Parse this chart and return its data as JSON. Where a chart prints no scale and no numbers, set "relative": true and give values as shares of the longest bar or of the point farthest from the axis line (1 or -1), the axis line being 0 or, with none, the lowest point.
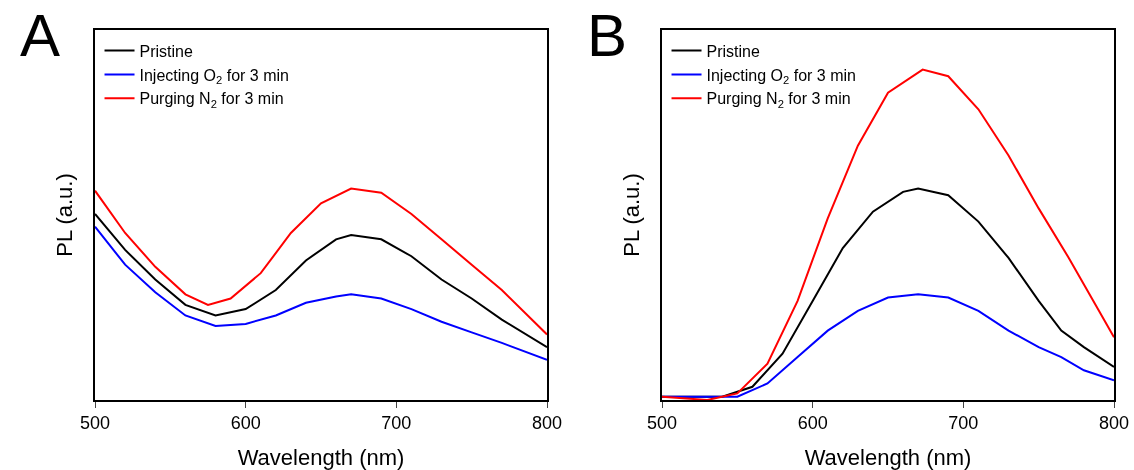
{
  "chart_data": [
    {
      "type": "line",
      "relative": true,
      "xlabel": "Wavelength (nm)",
      "ylabel": "PL (a.u.)",
      "annotations": [
        "A"
      ],
      "xlim": [
        500,
        800
      ],
      "xticks": [
        500,
        600,
        700,
        800
      ],
      "grid": false,
      "legend": "top left",
      "marker": "none",
      "line_style": "solid",
      "x": [
        500,
        520,
        540,
        560,
        575,
        590,
        610,
        630,
        650,
        670,
        690,
        710,
        730,
        750,
        770,
        800
      ],
      "series": [
        {
          "name": "Pristine",
          "color": "#000000",
          "x": [
            500,
            520,
            540,
            560,
            580,
            600,
            620,
            640,
            660,
            670,
            690,
            710,
            730,
            750,
            770,
            800
          ],
          "values": [
            0.88,
            0.71,
            0.57,
            0.45,
            0.4,
            0.43,
            0.52,
            0.66,
            0.76,
            0.78,
            0.76,
            0.68,
            0.57,
            0.48,
            0.38,
            0.25
          ]
        },
        {
          "name": "Injecting O$_{2}$ for 3 min",
          "color": "#0000ff",
          "x": [
            500,
            520,
            540,
            560,
            580,
            600,
            620,
            640,
            660,
            670,
            690,
            710,
            730,
            750,
            770,
            800
          ],
          "values": [
            0.82,
            0.64,
            0.51,
            0.4,
            0.35,
            0.36,
            0.4,
            0.46,
            0.49,
            0.5,
            0.48,
            0.43,
            0.37,
            0.32,
            0.27,
            0.19
          ]
        },
        {
          "name": "Purging N$_{2}$ for 3 min",
          "color": "#ff0000",
          "values": [
            0.99,
            0.79,
            0.63,
            0.5,
            0.45,
            0.48,
            0.6,
            0.79,
            0.93,
            1.0,
            0.98,
            0.88,
            0.76,
            0.64,
            0.52,
            0.31
          ]
        }
      ]
    },
    {
      "type": "line",
      "relative": true,
      "xlabel": "Wavelength (nm)",
      "ylabel": "PL (a.u.)",
      "annotations": [
        "B"
      ],
      "xlim": [
        500,
        800
      ],
      "xticks": [
        500,
        600,
        700,
        800
      ],
      "grid": false,
      "legend": "top left",
      "marker": "none",
      "line_style": "solid",
      "series": [
        {
          "name": "Pristine",
          "color": "#000000",
          "x": [
            500,
            540,
            560,
            580,
            600,
            620,
            640,
            660,
            670,
            690,
            710,
            730,
            750,
            765,
            780,
            800
          ],
          "values": [
            0.01,
            0.01,
            0.04,
            0.14,
            0.3,
            0.46,
            0.57,
            0.63,
            0.64,
            0.62,
            0.54,
            0.43,
            0.3,
            0.21,
            0.16,
            0.1
          ]
        },
        {
          "name": "Injecting O$_{2}$ for 3 min",
          "color": "#0000ff",
          "x": [
            500,
            550,
            570,
            590,
            610,
            630,
            650,
            670,
            690,
            710,
            730,
            750,
            765,
            780,
            800
          ],
          "values": [
            0.01,
            0.01,
            0.05,
            0.13,
            0.21,
            0.27,
            0.31,
            0.32,
            0.31,
            0.27,
            0.21,
            0.16,
            0.13,
            0.09,
            0.06
          ]
        },
        {
          "name": "Purging N$_{2}$ for 3 min",
          "color": "#ff0000",
          "x": [
            500,
            530,
            550,
            570,
            590,
            610,
            630,
            650,
            673,
            690,
            710,
            730,
            750,
            770,
            790,
            800
          ],
          "values": [
            0.01,
            0.0,
            0.02,
            0.11,
            0.3,
            0.55,
            0.77,
            0.93,
            1.0,
            0.98,
            0.88,
            0.74,
            0.58,
            0.43,
            0.27,
            0.19
          ]
        }
      ]
    }
  ]
}
